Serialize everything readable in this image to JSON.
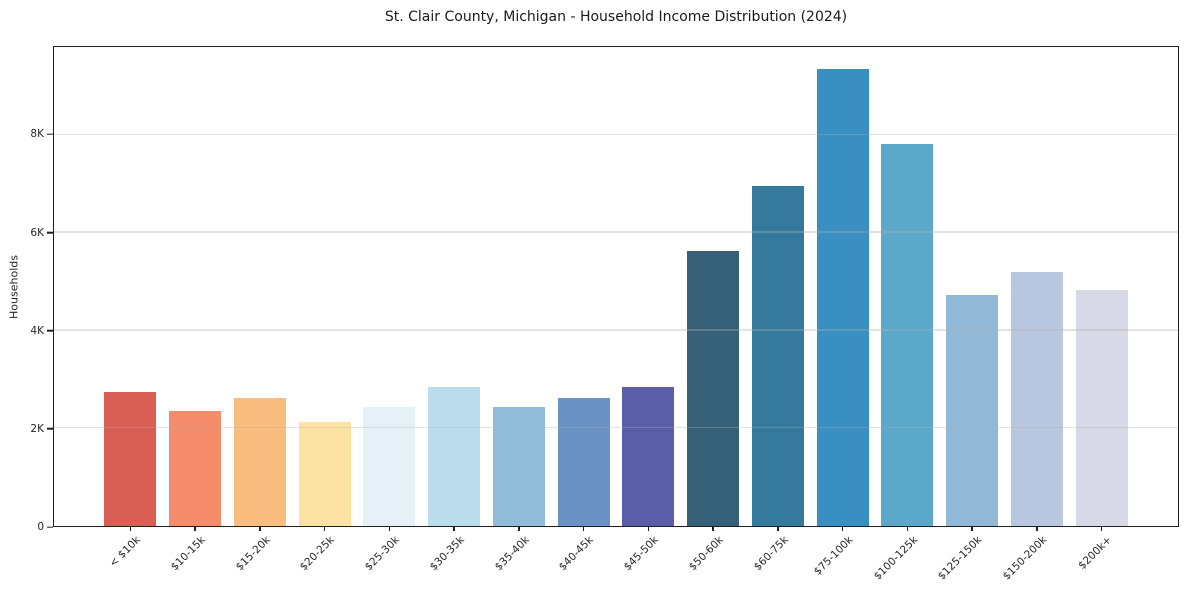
{
  "chart_data": {
    "type": "bar",
    "title": "St. Clair County, Michigan - Household Income Distribution (2024)",
    "xlabel": "",
    "ylabel": "Households",
    "categories": [
      "< $10k",
      "$10-15k",
      "$15-20k",
      "$20-25k",
      "$25-30k",
      "$30-35k",
      "$35-40k",
      "$40-45k",
      "$45-50k",
      "$50-60k",
      "$60-75k",
      "$75-100k",
      "$100-125k",
      "$125-150k",
      "$150-200k",
      "$200k+"
    ],
    "values": [
      2750,
      2360,
      2610,
      2120,
      2440,
      2850,
      2440,
      2610,
      2840,
      5620,
      6960,
      9350,
      7820,
      4720,
      5190,
      4820
    ],
    "bar_colors": [
      "#d95f55",
      "#f58d6c",
      "#fabd80",
      "#fde3a3",
      "#e5f1f6",
      "#badcec",
      "#90bcda",
      "#6b92c4",
      "#5a5ea9",
      "#366077",
      "#35799c",
      "#398fc2",
      "#5ca8cb",
      "#91b8d7",
      "#b8c8e0",
      "#d8d9e7"
    ],
    "ylim": [
      0,
      9800
    ],
    "ytick_values": [
      0,
      2000,
      4000,
      6000,
      8000
    ],
    "ytick_labels": [
      "0",
      "2K",
      "4K",
      "6K",
      "8K"
    ],
    "grid": "horizontal",
    "legend_position": "none",
    "xtick_rotation_deg": 45,
    "bar_width_fraction": 0.8,
    "colors": {
      "axis": "#1f1f1f",
      "gridline": "#ebebeb",
      "text": "#262626",
      "background": "#ffffff"
    }
  }
}
